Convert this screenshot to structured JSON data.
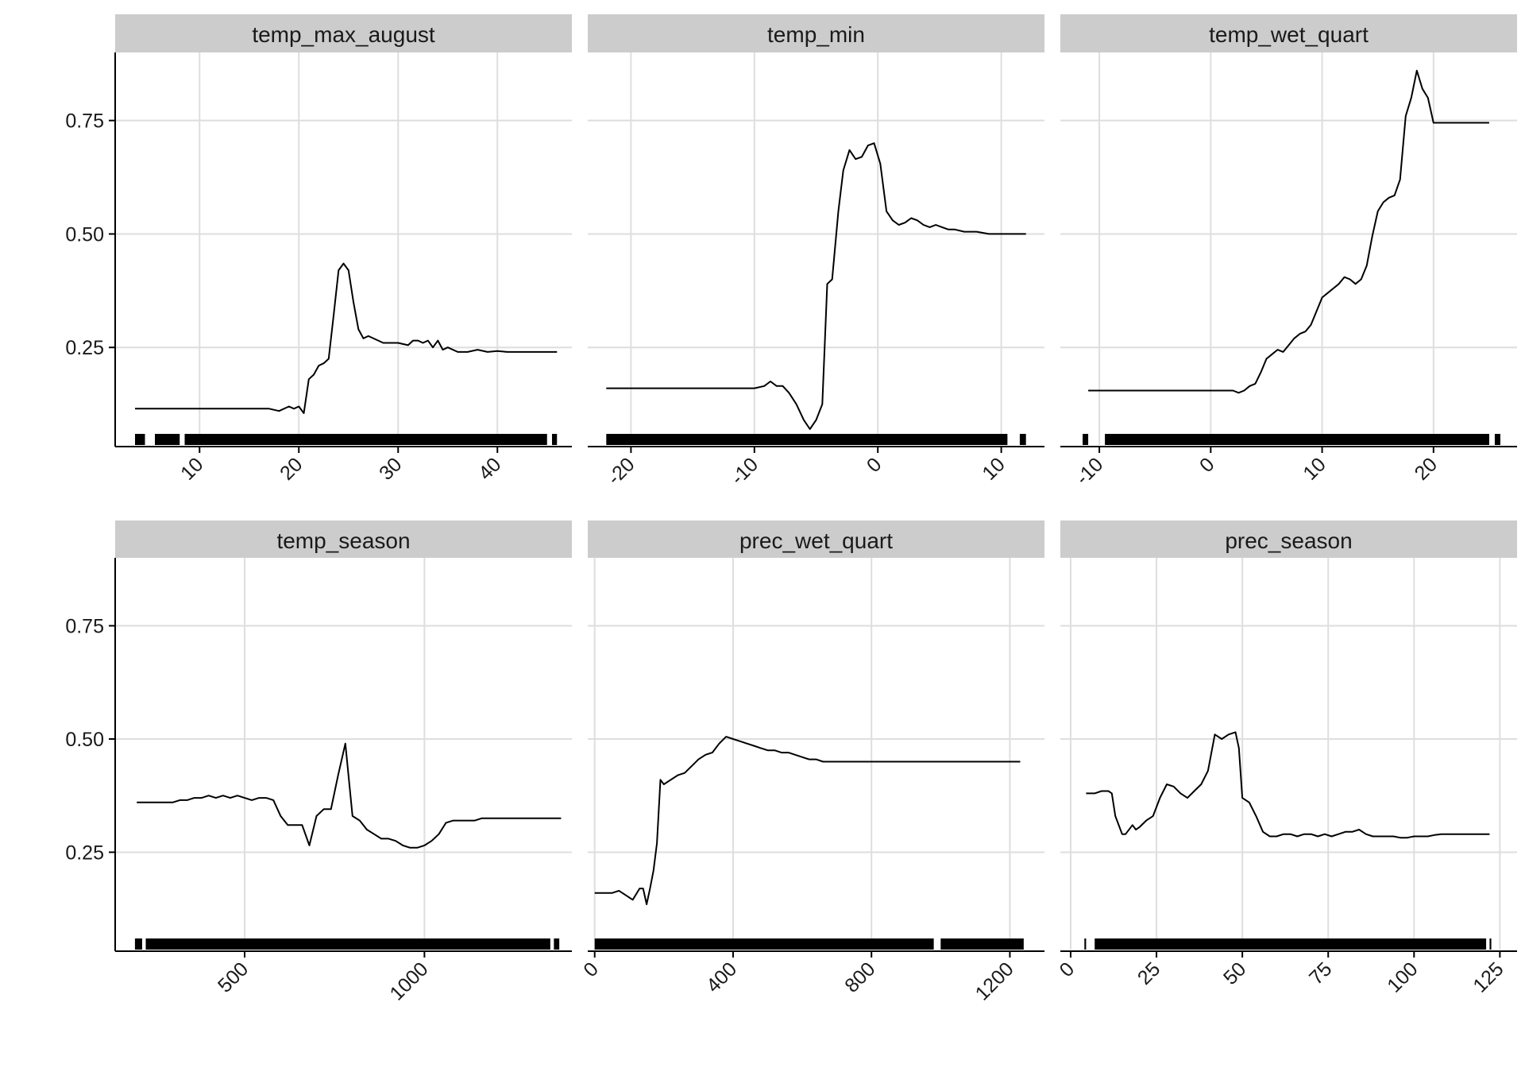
{
  "chart_data": {
    "type": "line",
    "layout": "facet-grid 2 rows x 3 columns, shared y axis per row",
    "grid": true,
    "legend": "none",
    "y_ticks": [
      0.25,
      0.5,
      0.75
    ],
    "y_tick_labels": [
      "0.25",
      "0.50",
      "0.75"
    ],
    "ylim": [
      0.035,
      0.9
    ],
    "panels": [
      {
        "title": "temp_max_august",
        "xlim": [
          1.5,
          47.5
        ],
        "x_ticks": [
          10,
          20,
          30,
          40
        ],
        "x_tick_labels": [
          "10",
          "20",
          "30",
          "40"
        ],
        "rug": [
          [
            3.5,
            4.5
          ],
          [
            5.5,
            8
          ],
          [
            8.5,
            45
          ],
          [
            45.5,
            46
          ]
        ],
        "series": {
          "x": [
            3.5,
            17,
            18,
            19,
            19.5,
            20,
            20.5,
            21,
            21.5,
            22,
            22.5,
            23,
            23.5,
            24,
            24.5,
            25,
            25.5,
            26,
            26.5,
            27,
            28,
            28.5,
            29,
            30,
            31,
            31.5,
            32,
            32.5,
            33,
            33.5,
            34,
            34.5,
            35,
            36,
            37,
            38,
            39,
            40,
            41,
            42,
            43,
            44,
            45,
            46
          ],
          "y": [
            0.115,
            0.115,
            0.11,
            0.12,
            0.115,
            0.12,
            0.105,
            0.18,
            0.19,
            0.21,
            0.215,
            0.225,
            0.32,
            0.42,
            0.435,
            0.42,
            0.35,
            0.29,
            0.27,
            0.275,
            0.265,
            0.26,
            0.26,
            0.26,
            0.255,
            0.265,
            0.265,
            0.26,
            0.265,
            0.25,
            0.265,
            0.245,
            0.25,
            0.24,
            0.24,
            0.245,
            0.24,
            0.242,
            0.24,
            0.24,
            0.24,
            0.24,
            0.24,
            0.24
          ]
        }
      },
      {
        "title": "temp_min",
        "xlim": [
          -23.5,
          13.5
        ],
        "x_ticks": [
          -20,
          -10,
          0,
          10
        ],
        "x_tick_labels": [
          "-20",
          "-10",
          "0",
          "10"
        ],
        "rug": [
          [
            -22,
            10.5
          ],
          [
            11.5,
            12
          ]
        ],
        "series": {
          "x": [
            -22,
            -10,
            -9.2,
            -8.7,
            -8.2,
            -7.7,
            -7.2,
            -6.6,
            -6.0,
            -5.5,
            -5.0,
            -4.5,
            -4.1,
            -3.7,
            -3.2,
            -2.8,
            -2.3,
            -1.8,
            -1.3,
            -0.8,
            -0.3,
            0.2,
            0.7,
            1.2,
            1.7,
            2.2,
            2.7,
            3.2,
            3.7,
            4.2,
            4.7,
            5.2,
            5.7,
            6.2,
            7,
            8,
            9,
            10,
            11,
            12
          ],
          "y": [
            0.16,
            0.16,
            0.165,
            0.175,
            0.165,
            0.165,
            0.15,
            0.125,
            0.09,
            0.07,
            0.09,
            0.125,
            0.39,
            0.4,
            0.55,
            0.64,
            0.685,
            0.665,
            0.67,
            0.695,
            0.7,
            0.655,
            0.55,
            0.53,
            0.52,
            0.525,
            0.535,
            0.53,
            0.52,
            0.515,
            0.52,
            0.515,
            0.51,
            0.51,
            0.505,
            0.505,
            0.5,
            0.5,
            0.5,
            0.5
          ]
        }
      },
      {
        "title": "temp_wet_quart",
        "xlim": [
          -13.5,
          27.5
        ],
        "x_ticks": [
          -10,
          0,
          10,
          20
        ],
        "x_tick_labels": [
          "-10",
          "0",
          "10",
          "20"
        ],
        "rug": [
          [
            -11.5,
            -11
          ],
          [
            -9.5,
            25
          ],
          [
            25.5,
            26
          ]
        ],
        "series": {
          "x": [
            -11,
            1.5,
            2,
            2.5,
            3,
            3.5,
            4,
            4.5,
            5,
            5.5,
            6,
            6.5,
            7,
            7.5,
            8,
            8.5,
            9,
            9.5,
            10,
            10.5,
            11,
            11.5,
            12,
            12.5,
            13,
            13.5,
            14,
            14.5,
            15,
            15.5,
            16,
            16.5,
            17,
            17.5,
            18,
            18.5,
            19,
            19.5,
            20,
            20.5,
            21,
            22,
            23,
            24,
            25
          ],
          "y": [
            0.155,
            0.155,
            0.155,
            0.15,
            0.155,
            0.165,
            0.17,
            0.195,
            0.225,
            0.235,
            0.245,
            0.24,
            0.255,
            0.27,
            0.28,
            0.285,
            0.3,
            0.33,
            0.36,
            0.37,
            0.38,
            0.39,
            0.405,
            0.4,
            0.39,
            0.4,
            0.43,
            0.495,
            0.55,
            0.57,
            0.58,
            0.585,
            0.62,
            0.76,
            0.8,
            0.86,
            0.82,
            0.8,
            0.745,
            0.745,
            0.745,
            0.745,
            0.745,
            0.745,
            0.745
          ]
        }
      },
      {
        "title": "temp_season",
        "xlim": [
          140,
          1410
        ],
        "x_ticks": [
          500,
          1000
        ],
        "x_tick_labels": [
          "500",
          "1000"
        ],
        "rug": [
          [
            195,
            215
          ],
          [
            225,
            1350
          ],
          [
            1360,
            1375
          ]
        ],
        "series": {
          "x": [
            200,
            300,
            320,
            340,
            360,
            380,
            400,
            420,
            440,
            460,
            480,
            500,
            520,
            540,
            560,
            580,
            600,
            620,
            640,
            660,
            680,
            700,
            720,
            740,
            760,
            780,
            800,
            820,
            840,
            860,
            880,
            900,
            920,
            940,
            960,
            980,
            1000,
            1020,
            1040,
            1060,
            1080,
            1100,
            1120,
            1140,
            1160,
            1200,
            1250,
            1300,
            1380
          ],
          "y": [
            0.36,
            0.36,
            0.365,
            0.365,
            0.37,
            0.37,
            0.375,
            0.37,
            0.375,
            0.37,
            0.375,
            0.37,
            0.365,
            0.37,
            0.37,
            0.365,
            0.33,
            0.31,
            0.31,
            0.31,
            0.265,
            0.33,
            0.345,
            0.345,
            0.42,
            0.49,
            0.33,
            0.32,
            0.3,
            0.29,
            0.28,
            0.28,
            0.275,
            0.265,
            0.26,
            0.26,
            0.265,
            0.275,
            0.29,
            0.315,
            0.32,
            0.32,
            0.32,
            0.32,
            0.325,
            0.325,
            0.325,
            0.325,
            0.325
          ]
        }
      },
      {
        "title": "prec_wet_quart",
        "xlim": [
          -20,
          1300
        ],
        "x_ticks": [
          0,
          400,
          800,
          1200
        ],
        "x_tick_labels": [
          "0",
          "400",
          "800",
          "1200"
        ],
        "rug": [
          [
            0,
            980
          ],
          [
            1000,
            1240
          ]
        ],
        "series": {
          "x": [
            0,
            50,
            70,
            90,
            110,
            130,
            140,
            150,
            160,
            170,
            180,
            190,
            200,
            220,
            240,
            260,
            280,
            300,
            320,
            340,
            360,
            380,
            400,
            420,
            440,
            460,
            480,
            500,
            520,
            540,
            560,
            580,
            600,
            620,
            640,
            660,
            680,
            700,
            800,
            1000,
            1230
          ],
          "y": [
            0.16,
            0.16,
            0.165,
            0.155,
            0.145,
            0.17,
            0.17,
            0.135,
            0.17,
            0.21,
            0.27,
            0.41,
            0.4,
            0.41,
            0.42,
            0.425,
            0.44,
            0.455,
            0.465,
            0.47,
            0.49,
            0.505,
            0.5,
            0.495,
            0.49,
            0.485,
            0.48,
            0.475,
            0.475,
            0.47,
            0.47,
            0.465,
            0.46,
            0.455,
            0.455,
            0.45,
            0.45,
            0.45,
            0.45,
            0.45,
            0.45
          ]
        }
      },
      {
        "title": "prec_season",
        "xlim": [
          -3,
          130
        ],
        "x_ticks": [
          0,
          25,
          50,
          75,
          100,
          125
        ],
        "x_tick_labels": [
          "0",
          "25",
          "50",
          "75",
          "100",
          "125"
        ],
        "rug": [
          [
            4,
            4.5
          ],
          [
            7,
            121
          ],
          [
            122,
            122.5
          ]
        ],
        "series": {
          "x": [
            4.5,
            7,
            9,
            11,
            12,
            13,
            15,
            16,
            18,
            19,
            20,
            22,
            24,
            26,
            28,
            30,
            32,
            34,
            36,
            38,
            40,
            42,
            44,
            46,
            48,
            49,
            50,
            52,
            54,
            56,
            58,
            60,
            62,
            64,
            66,
            68,
            70,
            72,
            74,
            76,
            78,
            80,
            82,
            84,
            86,
            88,
            90,
            92,
            94,
            96,
            98,
            100,
            102,
            104,
            106,
            108,
            110,
            112,
            114,
            116,
            118,
            120,
            122
          ],
          "y": [
            0.38,
            0.38,
            0.385,
            0.385,
            0.38,
            0.33,
            0.29,
            0.29,
            0.31,
            0.3,
            0.305,
            0.32,
            0.33,
            0.37,
            0.4,
            0.395,
            0.38,
            0.37,
            0.385,
            0.4,
            0.43,
            0.51,
            0.5,
            0.51,
            0.515,
            0.48,
            0.37,
            0.36,
            0.33,
            0.295,
            0.285,
            0.285,
            0.29,
            0.29,
            0.285,
            0.29,
            0.29,
            0.285,
            0.29,
            0.285,
            0.29,
            0.295,
            0.295,
            0.3,
            0.29,
            0.285,
            0.285,
            0.285,
            0.285,
            0.282,
            0.282,
            0.285,
            0.285,
            0.285,
            0.288,
            0.29,
            0.29,
            0.29,
            0.29,
            0.29,
            0.29,
            0.29,
            0.29
          ]
        }
      }
    ]
  }
}
